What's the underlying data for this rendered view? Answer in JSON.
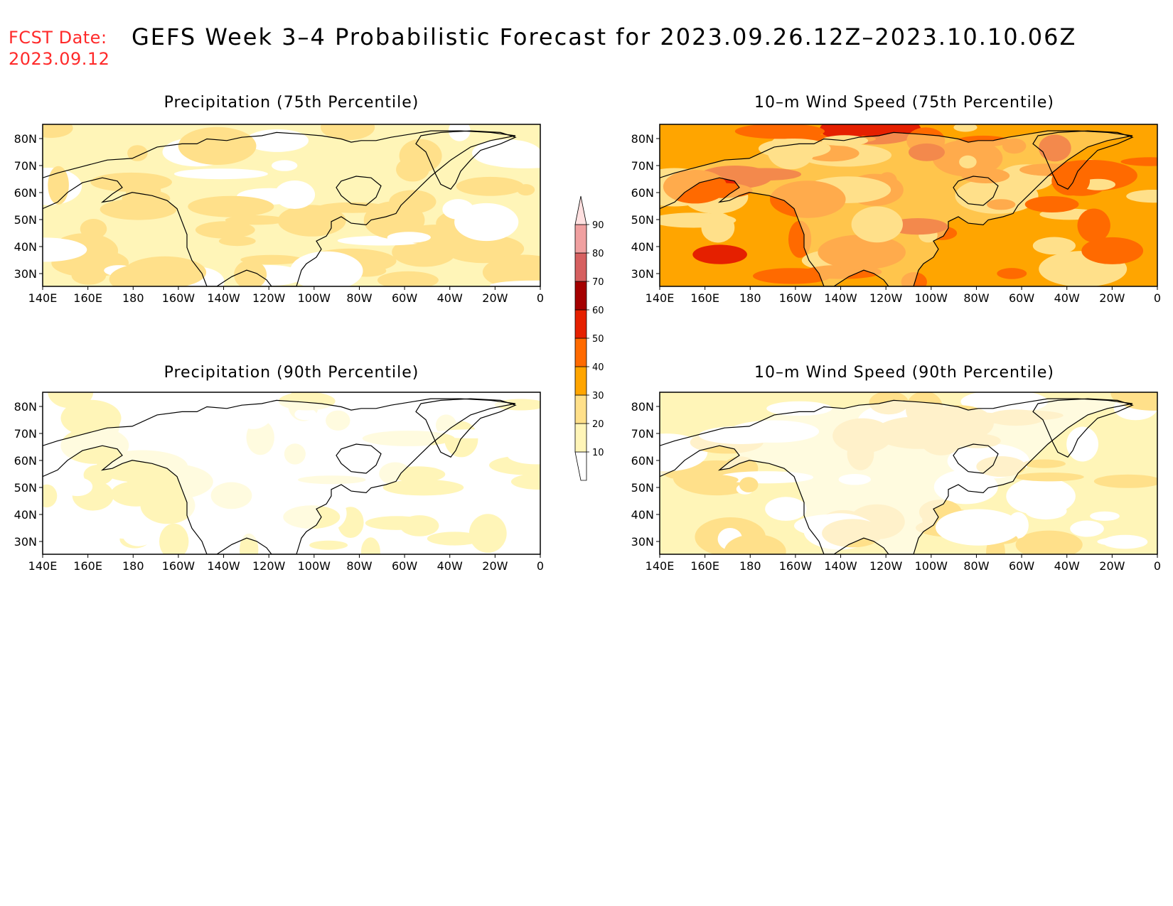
{
  "header": {
    "fcst_label": "FCST Date:",
    "fcst_date": "2023.09.12",
    "title": "GEFS Week 3–4 Probabilistic Forecast for 2023.09.26.12Z–2023.10.10.06Z"
  },
  "panels": [
    {
      "id": "precip75",
      "title": "Precipitation (75th Percentile)",
      "base_class": 1
    },
    {
      "id": "wind75",
      "title": "10–m Wind Speed (75th Percentile)",
      "base_class": 3
    },
    {
      "id": "precip90",
      "title": "Precipitation (90th Percentile)",
      "base_class": 0
    },
    {
      "id": "wind90",
      "title": "10–m Wind Speed (90th Percentile)",
      "base_class": 1
    }
  ],
  "axes": {
    "lon_labels": [
      "140E",
      "160E",
      "180",
      "160W",
      "140W",
      "120W",
      "100W",
      "80W",
      "60W",
      "40W",
      "20W",
      "0"
    ],
    "lat_labels": [
      "80N",
      "70N",
      "60N",
      "50N",
      "40N",
      "30N"
    ]
  },
  "colorbar": {
    "levels": [
      "10",
      "20",
      "30",
      "40",
      "50",
      "60",
      "70",
      "80",
      "90"
    ],
    "colors": [
      "#ffffff",
      "#fff5b8",
      "#ffe08a",
      "#ffa500",
      "#ff6a00",
      "#e52000",
      "#a50000",
      "#d66060",
      "#f0a0a0",
      "#ffe0e0"
    ]
  }
}
